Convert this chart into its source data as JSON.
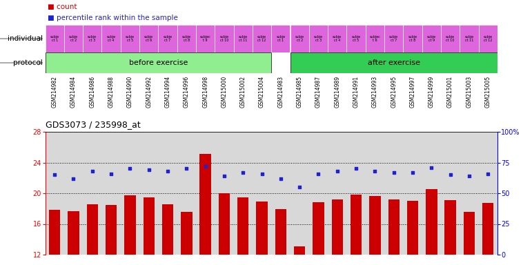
{
  "title": "GDS3073 / 235998_at",
  "samples": [
    "GSM214982",
    "GSM214984",
    "GSM214986",
    "GSM214988",
    "GSM214990",
    "GSM214992",
    "GSM214994",
    "GSM214996",
    "GSM214998",
    "GSM215000",
    "GSM215002",
    "GSM215004",
    "GSM214983",
    "GSM214985",
    "GSM214987",
    "GSM214989",
    "GSM214991",
    "GSM214993",
    "GSM214995",
    "GSM214997",
    "GSM214999",
    "GSM215001",
    "GSM215003",
    "GSM215005"
  ],
  "bar_values": [
    17.8,
    17.7,
    18.6,
    18.5,
    19.7,
    19.5,
    18.6,
    17.6,
    25.1,
    20.0,
    19.5,
    18.9,
    17.9,
    13.1,
    18.8,
    19.2,
    19.8,
    19.6,
    19.2,
    19.0,
    20.5,
    19.1,
    17.6,
    18.7
  ],
  "percentile_values": [
    65,
    62,
    68,
    66,
    70,
    69,
    68,
    70,
    72,
    64,
    67,
    66,
    62,
    55,
    66,
    68,
    70,
    68,
    67,
    67,
    71,
    65,
    64,
    66
  ],
  "n_before": 12,
  "n_after": 12,
  "individuals": [
    "subje\nct 1",
    "subje\nct 2",
    "subje\nct 3",
    "subje\nct 4",
    "subje\nct 5",
    "subje\nct 6",
    "subje\nct 7",
    "subje\nct 8",
    "subjec\nt 9",
    "subje\nct 10",
    "subje\nct 11",
    "subje\nct 12",
    "subje\nct 1",
    "subje\nct 2",
    "subje\nct 3",
    "subje\nct 4",
    "subje\nct 5",
    "subjec\nt 6",
    "subje\nct 7",
    "subje\nct 8",
    "subje\nct 9",
    "subje\nct 10",
    "subje\nct 11",
    "subje\nct 12"
  ],
  "ylim": [
    12,
    28
  ],
  "ylim_right": [
    0,
    100
  ],
  "yticks_left": [
    12,
    16,
    20,
    24,
    28
  ],
  "yticks_right": [
    0,
    25,
    50,
    75,
    100
  ],
  "ytick_right_labels": [
    "0",
    "25",
    "50",
    "75",
    "100%"
  ],
  "grid_lines": [
    16,
    20,
    24
  ],
  "bar_color": "#cc0000",
  "dot_color": "#2222cc",
  "before_color": "#90ee90",
  "after_color": "#33cc55",
  "individual_color": "#dd66dd",
  "plot_bg": "#d8d8d8",
  "xtick_bg": "#c8c8c8"
}
